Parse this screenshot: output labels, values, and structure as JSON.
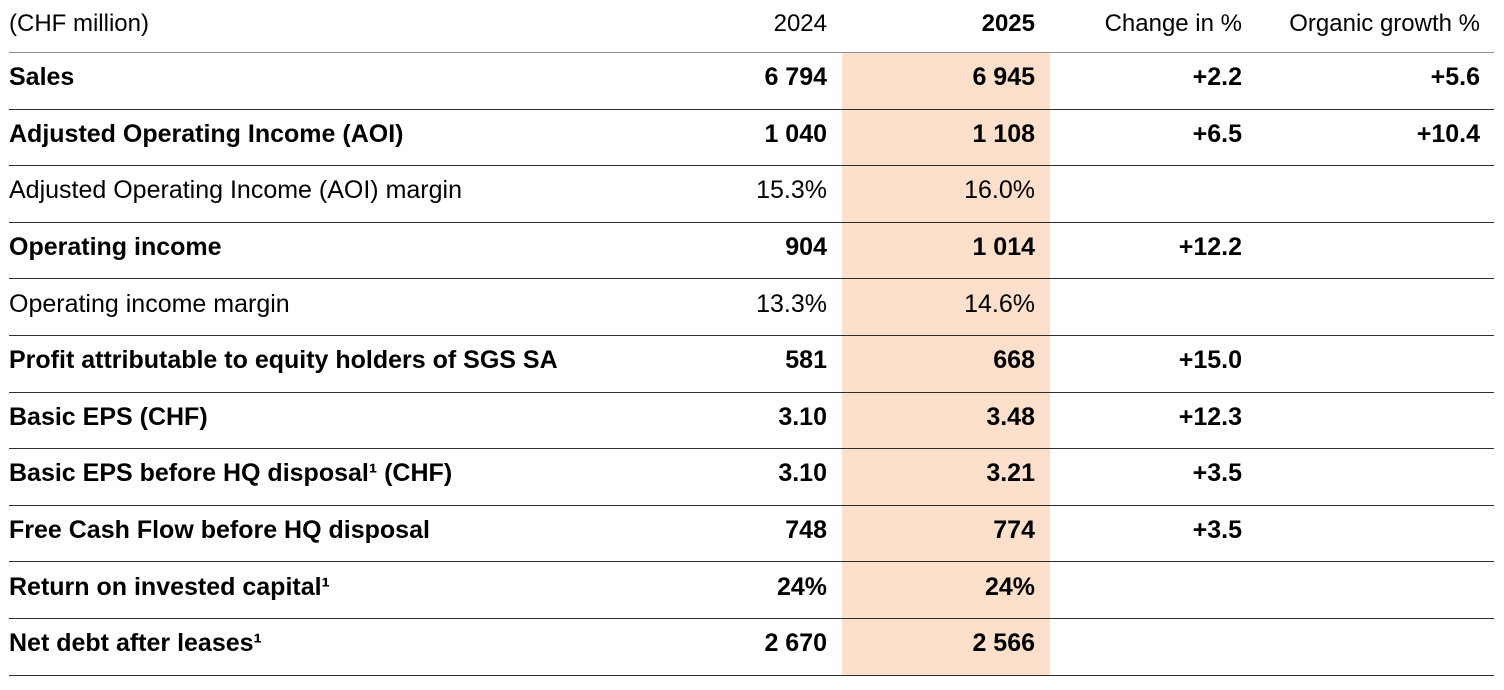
{
  "table": {
    "unit_label": "(CHF million)",
    "columns": {
      "y2024": "2024",
      "y2025": "2025",
      "change": "Change in %",
      "organic": "Organic growth %"
    },
    "highlight_color": "#FCE0CB",
    "rows": [
      {
        "label": "Sales",
        "bold": true,
        "v2024": "6 794",
        "v2025": "6 945",
        "change": "+2.2",
        "organic": "+5.6"
      },
      {
        "label": "Adjusted Operating Income (AOI)",
        "bold": true,
        "v2024": "1 040",
        "v2025": "1 108",
        "change": "+6.5",
        "organic": "+10.4"
      },
      {
        "label": "Adjusted Operating Income (AOI) margin",
        "bold": false,
        "v2024": "15.3%",
        "v2025": "16.0%",
        "change": "",
        "organic": ""
      },
      {
        "label": "Operating income",
        "bold": true,
        "v2024": "904",
        "v2025": "1 014",
        "change": "+12.2",
        "organic": ""
      },
      {
        "label": "Operating income margin",
        "bold": false,
        "v2024": "13.3%",
        "v2025": "14.6%",
        "change": "",
        "organic": ""
      },
      {
        "label": "Profit attributable to equity holders of SGS SA",
        "bold": true,
        "v2024": "581",
        "v2025": "668",
        "change": "+15.0",
        "organic": ""
      },
      {
        "label": "Basic EPS (CHF)",
        "bold": true,
        "v2024": "3.10",
        "v2025": "3.48",
        "change": "+12.3",
        "organic": ""
      },
      {
        "label": "Basic EPS before HQ disposal¹ (CHF)",
        "bold": true,
        "v2024": "3.10",
        "v2025": "3.21",
        "change": "+3.5",
        "organic": ""
      },
      {
        "label": "Free Cash Flow before HQ disposal",
        "bold": true,
        "v2024": "748",
        "v2025": "774",
        "change": "+3.5",
        "organic": ""
      },
      {
        "label": "Return on invested capital¹",
        "bold": true,
        "v2024": "24%",
        "v2025": "24%",
        "change": "",
        "organic": ""
      },
      {
        "label": "Net debt after leases¹",
        "bold": true,
        "v2024": "2 670",
        "v2025": "2 566",
        "change": "",
        "organic": ""
      }
    ]
  }
}
